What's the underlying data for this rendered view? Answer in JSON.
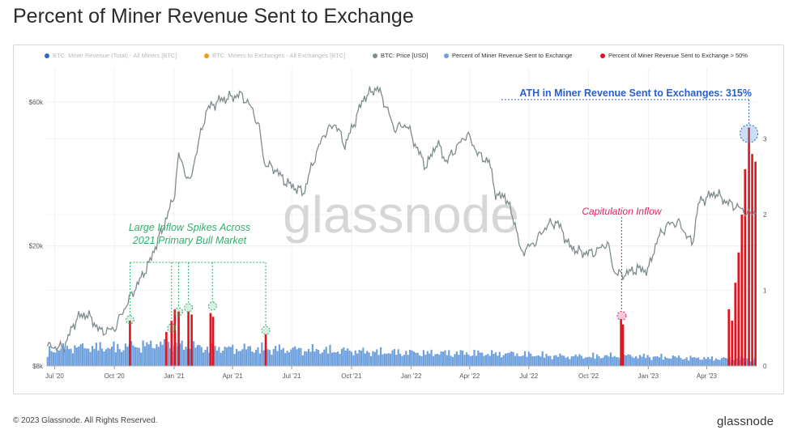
{
  "title": "Percent of Miner Revenue Sent to Exchange",
  "legend": [
    {
      "label": "BTC: Miner Revenue (Total) - All Miners [BTC]",
      "color": "#2a67d0",
      "dim": true
    },
    {
      "label": "BTC: Miners to Exchanges - All Exchanges [BTC]",
      "color": "#f39b1c",
      "dim": true
    },
    {
      "label": "BTC: Price [USD]",
      "color": "#7f8c8d",
      "dim": false
    },
    {
      "label": "Percent of Miner Revenue Sent to Exchange",
      "color": "#6ea0dd",
      "dim": false
    },
    {
      "label": "Percent of Miner Revenue Sent to Exchange > 50%",
      "color": "#e0141e",
      "dim": false
    }
  ],
  "watermark": "glassnode",
  "annotations": {
    "ath": "ATH in Miner Revenue Sent to Exchanges: 315%",
    "capitulation": "Capitulation Inflow",
    "bull_line1": "Large Inflow Spikes Across",
    "bull_line2": "2021 Primary Bull Market"
  },
  "footer": {
    "copyright": "© 2023 Glassnode. All Rights Reserved.",
    "brand": "glassnode"
  },
  "chart_data": {
    "type": "line",
    "x_ticks": [
      "Jul '20",
      "Oct '20",
      "Jan '21",
      "Apr '21",
      "Jul '21",
      "Oct '21",
      "Jan '22",
      "Apr '22",
      "Jul '22",
      "Oct '22",
      "Jan '23",
      "Apr '23"
    ],
    "y_left_ticks": [
      "$8k",
      "$20k",
      "$60k"
    ],
    "y_left_scale": "log",
    "y_left_range": [
      8000,
      80000
    ],
    "y_right_ticks": [
      "0",
      "1",
      "2",
      "3"
    ],
    "y_right_range": [
      0,
      3.5
    ],
    "grid": true,
    "legend_position": "top",
    "series": [
      {
        "name": "BTC: Price [USD]",
        "color": "#7f8c8d",
        "x": [
          "2020-06-20",
          "2020-07-15",
          "2020-08-05",
          "2020-08-20",
          "2020-09-10",
          "2020-10-01",
          "2020-10-20",
          "2020-11-10",
          "2020-11-25",
          "2020-12-15",
          "2021-01-01",
          "2021-01-08",
          "2021-01-25",
          "2021-02-10",
          "2021-02-21",
          "2021-03-13",
          "2021-04-14",
          "2021-05-01",
          "2021-05-12",
          "2021-05-20",
          "2021-06-05",
          "2021-06-22",
          "2021-07-20",
          "2021-08-05",
          "2021-08-20",
          "2021-09-06",
          "2021-09-21",
          "2021-10-05",
          "2021-10-20",
          "2021-11-10",
          "2021-11-25",
          "2021-12-05",
          "2021-12-25",
          "2022-01-10",
          "2022-01-24",
          "2022-02-10",
          "2022-02-24",
          "2022-03-28",
          "2022-04-15",
          "2022-05-01",
          "2022-05-12",
          "2022-05-25",
          "2022-06-13",
          "2022-06-18",
          "2022-07-10",
          "2022-07-30",
          "2022-08-14",
          "2022-09-01",
          "2022-09-20",
          "2022-10-10",
          "2022-10-30",
          "2022-11-09",
          "2022-11-21",
          "2022-12-15",
          "2023-01-01",
          "2023-01-15",
          "2023-01-30",
          "2023-02-16",
          "2023-03-10",
          "2023-03-20",
          "2023-04-14",
          "2023-05-01",
          "2023-05-20",
          "2023-06-05",
          "2023-06-15"
        ],
        "y": [
          9300,
          9200,
          11600,
          11900,
          10400,
          10600,
          12800,
          15500,
          17800,
          23000,
          29000,
          40000,
          32000,
          46000,
          57000,
          61000,
          63500,
          57000,
          49000,
          37500,
          36000,
          32500,
          30000,
          39000,
          47000,
          51000,
          43000,
          51000,
          62000,
          67000,
          57000,
          49000,
          50500,
          42000,
          36500,
          44000,
          38000,
          47000,
          40000,
          38000,
          29000,
          29500,
          22500,
          19000,
          20500,
          23500,
          24000,
          20000,
          19000,
          19000,
          20500,
          16500,
          16000,
          16800,
          16600,
          21000,
          23500,
          24000,
          20200,
          28000,
          30000,
          28000,
          26800,
          25500,
          26000
        ]
      },
      {
        "name": "Percent of Miner Revenue Sent to Exchange",
        "color": "#6ea0dd",
        "x": [
          "2020-06-20",
          "2020-08-01",
          "2020-10-01",
          "2020-12-01",
          "2021-03-01",
          "2021-06-01",
          "2021-09-01",
          "2021-12-01",
          "2022-03-01",
          "2022-06-01",
          "2022-09-01",
          "2022-12-01",
          "2023-03-01",
          "2023-06-15"
        ],
        "y": [
          0.22,
          0.28,
          0.27,
          0.32,
          0.26,
          0.25,
          0.23,
          0.2,
          0.19,
          0.18,
          0.14,
          0.15,
          0.12,
          0.1
        ]
      },
      {
        "name": "Percent of Miner Revenue Sent to Exchange > 50%",
        "color": "#e0141e",
        "x": [
          "2020-10-25",
          "2020-12-20",
          "2020-12-28",
          "2021-01-02",
          "2021-01-08",
          "2021-01-23",
          "2021-01-28",
          "2021-02-26",
          "2021-03-02",
          "2021-05-22",
          "2022-11-20",
          "2022-11-23",
          "2023-05-05",
          "2023-05-10",
          "2023-05-15",
          "2023-05-20",
          "2023-05-25",
          "2023-05-30",
          "2023-06-05",
          "2023-06-10",
          "2023-06-15"
        ],
        "y": [
          0.6,
          0.45,
          0.6,
          0.75,
          0.72,
          0.72,
          0.68,
          0.7,
          0.65,
          0.42,
          0.62,
          0.55,
          0.75,
          0.6,
          1.1,
          1.5,
          2.0,
          2.6,
          3.15,
          2.8,
          2.7
        ]
      }
    ]
  }
}
